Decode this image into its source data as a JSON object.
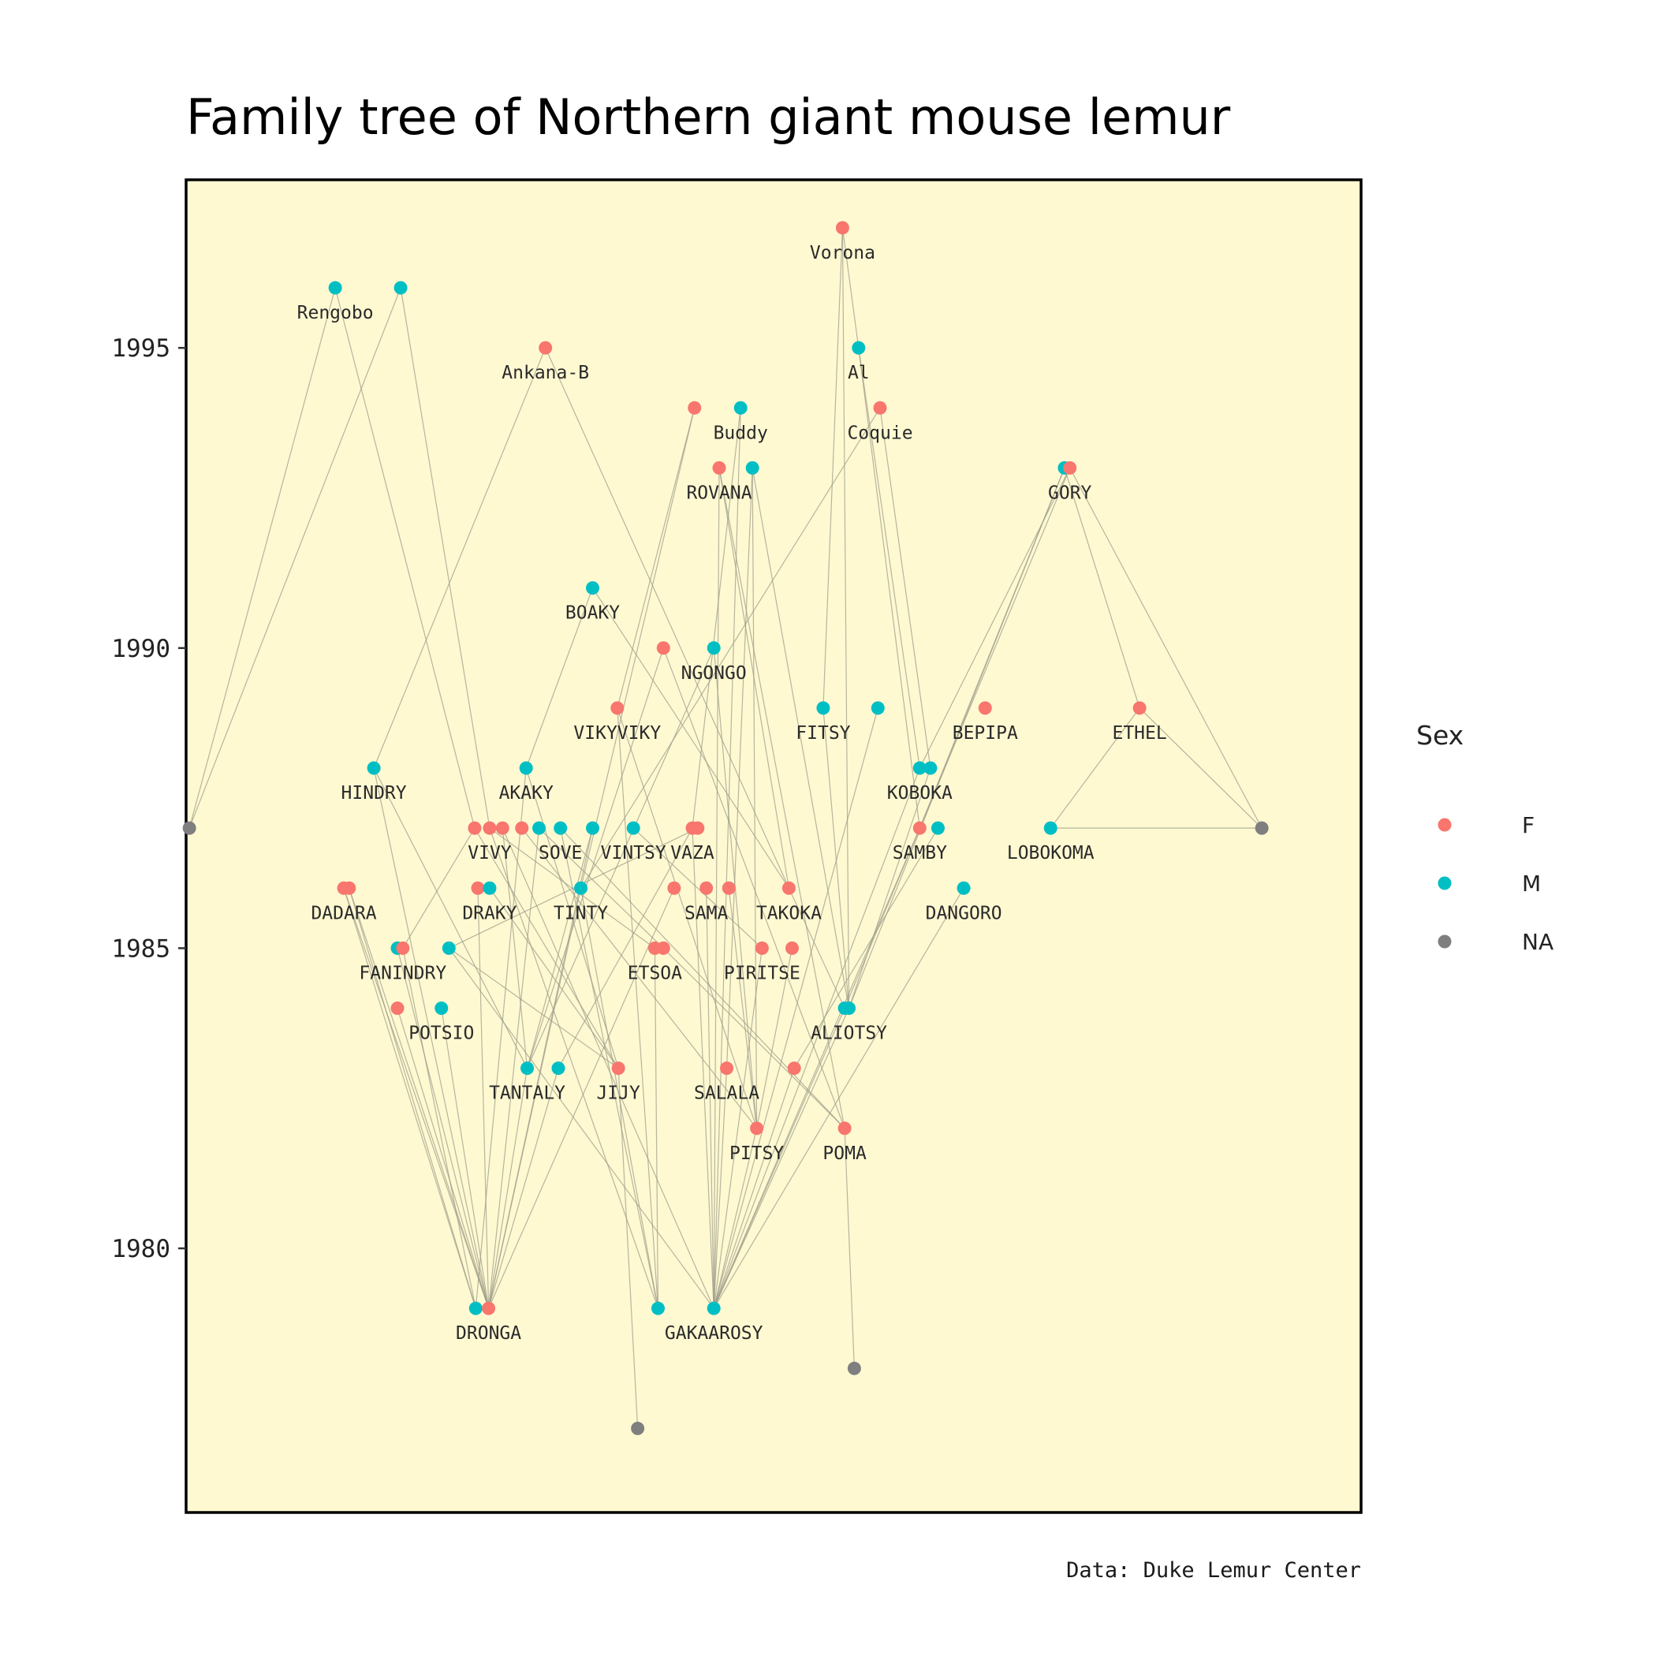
{
  "chart_data": {
    "type": "scatter",
    "title": "Family tree of Northern giant mouse lemur",
    "caption": "Data: Duke Lemur Center",
    "xlabel": "",
    "ylabel": "",
    "ylim": [
      1975.6,
      1997.8
    ],
    "xlim": [
      0,
      1
    ],
    "yticks": [
      1980,
      1985,
      1990,
      1995
    ],
    "grid": false,
    "background_color": "#FFF9D2",
    "edge_color": "#9E9E8A",
    "legend": {
      "title": "Sex",
      "placement": "right",
      "entries": [
        {
          "label": "F",
          "color": "#F8766D"
        },
        {
          "label": "M",
          "color": "#00BFC4"
        },
        {
          "label": "NA",
          "color": "#7F7F7F"
        }
      ]
    },
    "nodes": [
      {
        "id": "vorona",
        "label": "Vorona",
        "sex": "F",
        "x": 0.565,
        "y": 1997.0
      },
      {
        "id": "rengobo",
        "label": "Rengobo",
        "sex": "M",
        "x": 0.092,
        "y": 1996.0
      },
      {
        "id": "m_r2",
        "label": "",
        "sex": "M",
        "x": 0.153,
        "y": 1996.0
      },
      {
        "id": "ankana",
        "label": "Ankana-B",
        "sex": "F",
        "x": 0.288,
        "y": 1995.0
      },
      {
        "id": "al",
        "label": "Al",
        "sex": "M",
        "x": 0.58,
        "y": 1995.0
      },
      {
        "id": "f_b",
        "label": "",
        "sex": "F",
        "x": 0.427,
        "y": 1994.0
      },
      {
        "id": "buddy",
        "label": "Buddy",
        "sex": "M",
        "x": 0.47,
        "y": 1994.0
      },
      {
        "id": "coquie",
        "label": "Coquie",
        "sex": "F",
        "x": 0.6,
        "y": 1994.0
      },
      {
        "id": "rovana",
        "label": "ROVANA",
        "sex": "F",
        "x": 0.45,
        "y": 1993.0
      },
      {
        "id": "m_rov",
        "label": "",
        "sex": "M",
        "x": 0.481,
        "y": 1993.0
      },
      {
        "id": "gory_m",
        "label": "",
        "sex": "M",
        "x": 0.772,
        "y": 1993.0
      },
      {
        "id": "gory",
        "label": "GORY",
        "sex": "F",
        "x": 0.777,
        "y": 1993.0
      },
      {
        "id": "boaky",
        "label": "BOAKY",
        "sex": "M",
        "x": 0.332,
        "y": 1991.0
      },
      {
        "id": "f_n",
        "label": "",
        "sex": "F",
        "x": 0.398,
        "y": 1990.0
      },
      {
        "id": "ngongo",
        "label": "NGONGO",
        "sex": "M",
        "x": 0.445,
        "y": 1990.0
      },
      {
        "id": "vikyviky",
        "label": "VIKYVIKY",
        "sex": "F",
        "x": 0.355,
        "y": 1989.0
      },
      {
        "id": "fitsy",
        "label": "FITSY",
        "sex": "M",
        "x": 0.547,
        "y": 1989.0
      },
      {
        "id": "m_f2",
        "label": "",
        "sex": "M",
        "x": 0.598,
        "y": 1989.0
      },
      {
        "id": "bepipa",
        "label": "BEPIPA",
        "sex": "F",
        "x": 0.698,
        "y": 1989.0
      },
      {
        "id": "ethel",
        "label": "ETHEL",
        "sex": "F",
        "x": 0.842,
        "y": 1989.0
      },
      {
        "id": "hindry",
        "label": "HINDRY",
        "sex": "M",
        "x": 0.128,
        "y": 1988.0
      },
      {
        "id": "akaky",
        "label": "AKAKY",
        "sex": "M",
        "x": 0.27,
        "y": 1988.0
      },
      {
        "id": "koboka",
        "label": "KOBOKA",
        "sex": "M",
        "x": 0.637,
        "y": 1988.0
      },
      {
        "id": "koboka2",
        "label": "",
        "sex": "M",
        "x": 0.647,
        "y": 1988.0
      },
      {
        "id": "na1",
        "label": "",
        "sex": "NA",
        "x": -0.044,
        "y": 1987.0
      },
      {
        "id": "vivy1",
        "label": "",
        "sex": "F",
        "x": 0.222,
        "y": 1987.0
      },
      {
        "id": "vivy",
        "label": "VIVY",
        "sex": "F",
        "x": 0.236,
        "y": 1987.0
      },
      {
        "id": "vivy3",
        "label": "",
        "sex": "F",
        "x": 0.248,
        "y": 1987.0
      },
      {
        "id": "f_v4",
        "label": "",
        "sex": "F",
        "x": 0.266,
        "y": 1987.0
      },
      {
        "id": "m_s1",
        "label": "",
        "sex": "M",
        "x": 0.282,
        "y": 1987.0
      },
      {
        "id": "sove",
        "label": "SOVE",
        "sex": "M",
        "x": 0.302,
        "y": 1987.0
      },
      {
        "id": "m_s3",
        "label": "",
        "sex": "M",
        "x": 0.332,
        "y": 1987.0
      },
      {
        "id": "vintsy",
        "label": "VINTSY",
        "sex": "M",
        "x": 0.37,
        "y": 1987.0
      },
      {
        "id": "vaza",
        "label": "VAZA",
        "sex": "F",
        "x": 0.425,
        "y": 1987.0
      },
      {
        "id": "vaza2",
        "label": "",
        "sex": "F",
        "x": 0.43,
        "y": 1987.0
      },
      {
        "id": "samby",
        "label": "SAMBY",
        "sex": "F",
        "x": 0.637,
        "y": 1987.0
      },
      {
        "id": "samby_m",
        "label": "",
        "sex": "M",
        "x": 0.654,
        "y": 1987.0
      },
      {
        "id": "lobokoma",
        "label": "LOBOKOMA",
        "sex": "M",
        "x": 0.759,
        "y": 1987.0
      },
      {
        "id": "na2",
        "label": "",
        "sex": "NA",
        "x": 0.956,
        "y": 1987.0
      },
      {
        "id": "dadara",
        "label": "DADARA",
        "sex": "F",
        "x": 0.1,
        "y": 1986.0
      },
      {
        "id": "dadara2",
        "label": "",
        "sex": "F",
        "x": 0.105,
        "y": 1986.0
      },
      {
        "id": "draky_f",
        "label": "",
        "sex": "F",
        "x": 0.225,
        "y": 1986.0
      },
      {
        "id": "draky",
        "label": "DRAKY",
        "sex": "M",
        "x": 0.236,
        "y": 1986.0
      },
      {
        "id": "tinty",
        "label": "TINTY",
        "sex": "M",
        "x": 0.321,
        "y": 1986.0
      },
      {
        "id": "f_s1",
        "label": "",
        "sex": "F",
        "x": 0.408,
        "y": 1986.0
      },
      {
        "id": "sama",
        "label": "SAMA",
        "sex": "F",
        "x": 0.438,
        "y": 1986.0
      },
      {
        "id": "f_s3",
        "label": "",
        "sex": "F",
        "x": 0.459,
        "y": 1986.0
      },
      {
        "id": "takoka",
        "label": "TAKOKA",
        "sex": "F",
        "x": 0.515,
        "y": 1986.0
      },
      {
        "id": "dangoro",
        "label": "DANGORO",
        "sex": "M",
        "x": 0.678,
        "y": 1986.0
      },
      {
        "id": "fanindry_m",
        "label": "",
        "sex": "M",
        "x": 0.15,
        "y": 1985.0
      },
      {
        "id": "fanindry",
        "label": "FANINDRY",
        "sex": "F",
        "x": 0.155,
        "y": 1985.0
      },
      {
        "id": "m_f3",
        "label": "",
        "sex": "M",
        "x": 0.198,
        "y": 1985.0
      },
      {
        "id": "etsoa",
        "label": "ETSOA",
        "sex": "F",
        "x": 0.39,
        "y": 1985.0
      },
      {
        "id": "etsoa2",
        "label": "",
        "sex": "F",
        "x": 0.398,
        "y": 1985.0
      },
      {
        "id": "piritse",
        "label": "PIRITSE",
        "sex": "F",
        "x": 0.49,
        "y": 1985.0
      },
      {
        "id": "f_p2",
        "label": "",
        "sex": "F",
        "x": 0.518,
        "y": 1985.0
      },
      {
        "id": "f_po",
        "label": "",
        "sex": "F",
        "x": 0.15,
        "y": 1984.0
      },
      {
        "id": "potsio",
        "label": "POTSIO",
        "sex": "M",
        "x": 0.191,
        "y": 1984.0
      },
      {
        "id": "aliotsy_m",
        "label": "",
        "sex": "M",
        "x": 0.567,
        "y": 1984.0
      },
      {
        "id": "aliotsy",
        "label": "ALIOTSY",
        "sex": "M",
        "x": 0.571,
        "y": 1984.0
      },
      {
        "id": "tantaly",
        "label": "TANTALY",
        "sex": "M",
        "x": 0.271,
        "y": 1983.0
      },
      {
        "id": "m_t2",
        "label": "",
        "sex": "M",
        "x": 0.3,
        "y": 1983.0
      },
      {
        "id": "jijy",
        "label": "JIJY",
        "sex": "F",
        "x": 0.356,
        "y": 1983.0
      },
      {
        "id": "salala",
        "label": "SALALA",
        "sex": "F",
        "x": 0.457,
        "y": 1983.0
      },
      {
        "id": "f_s5",
        "label": "",
        "sex": "F",
        "x": 0.52,
        "y": 1983.0
      },
      {
        "id": "pitsy",
        "label": "PITSY",
        "sex": "F",
        "x": 0.485,
        "y": 1982.0
      },
      {
        "id": "poma",
        "label": "POMA",
        "sex": "F",
        "x": 0.567,
        "y": 1982.0
      },
      {
        "id": "dronga_m",
        "label": "",
        "sex": "M",
        "x": 0.223,
        "y": 1979.0
      },
      {
        "id": "dronga",
        "label": "DRONGA",
        "sex": "F",
        "x": 0.235,
        "y": 1979.0
      },
      {
        "id": "gakaa",
        "label": "",
        "sex": "M",
        "x": 0.393,
        "y": 1979.0
      },
      {
        "id": "gakaarosy",
        "label": "GAKAAROSY",
        "sex": "M",
        "x": 0.445,
        "y": 1979.0
      },
      {
        "id": "na3",
        "label": "",
        "sex": "NA",
        "x": 0.576,
        "y": 1978.0
      },
      {
        "id": "na4",
        "label": "",
        "sex": "NA",
        "x": 0.374,
        "y": 1977.0
      }
    ],
    "edges": [
      [
        "vorona",
        "fitsy"
      ],
      [
        "vorona",
        "aliotsy"
      ],
      [
        "vorona",
        "al"
      ],
      [
        "rengobo",
        "na1"
      ],
      [
        "rengobo",
        "vivy1"
      ],
      [
        "m_r2",
        "na1"
      ],
      [
        "m_r2",
        "vivy"
      ],
      [
        "ankana",
        "hindry"
      ],
      [
        "ankana",
        "takoka"
      ],
      [
        "al",
        "koboka"
      ],
      [
        "al",
        "samby"
      ],
      [
        "f_b",
        "tinty"
      ],
      [
        "f_b",
        "vikyviky"
      ],
      [
        "buddy",
        "vaza"
      ],
      [
        "buddy",
        "gakaarosy"
      ],
      [
        "coquie",
        "koboka2"
      ],
      [
        "coquie",
        "tinty"
      ],
      [
        "rovana",
        "gakaarosy"
      ],
      [
        "rovana",
        "poma"
      ],
      [
        "rovana",
        "takoka"
      ],
      [
        "m_rov",
        "pitsy"
      ],
      [
        "m_rov",
        "aliotsy"
      ],
      [
        "m_rov",
        "salala"
      ],
      [
        "gory_m",
        "aliotsy"
      ],
      [
        "gory_m",
        "samby"
      ],
      [
        "gory_m",
        "ethel"
      ],
      [
        "gory",
        "koboka"
      ],
      [
        "gory",
        "na2"
      ],
      [
        "gory",
        "aliotsy_m"
      ],
      [
        "boaky",
        "akaky"
      ],
      [
        "boaky",
        "takoka"
      ],
      [
        "f_n",
        "tantaly"
      ],
      [
        "f_n",
        "poma"
      ],
      [
        "ngongo",
        "tantaly"
      ],
      [
        "ngongo",
        "pitsy"
      ],
      [
        "vikyviky",
        "gakaa"
      ],
      [
        "vikyviky",
        "pitsy"
      ],
      [
        "fitsy",
        "aliotsy"
      ],
      [
        "m_f2",
        "gakaarosy"
      ],
      [
        "ethel",
        "lobokoma"
      ],
      [
        "ethel",
        "na2"
      ],
      [
        "hindry",
        "dronga"
      ],
      [
        "hindry",
        "tantaly"
      ],
      [
        "akaky",
        "dronga_m"
      ],
      [
        "akaky",
        "jijy"
      ],
      [
        "koboka",
        "gakaarosy"
      ],
      [
        "koboka2",
        "aliotsy"
      ],
      [
        "vivy1",
        "fanindry"
      ],
      [
        "vivy1",
        "jijy"
      ],
      [
        "vivy",
        "gakaa"
      ],
      [
        "vivy",
        "etsoa"
      ],
      [
        "vivy3",
        "tantaly"
      ],
      [
        "vivy3",
        "gakaarosy"
      ],
      [
        "f_v4",
        "pitsy"
      ],
      [
        "m_s1",
        "etsoa2"
      ],
      [
        "m_s1",
        "dronga"
      ],
      [
        "sove",
        "gakaa"
      ],
      [
        "sove",
        "poma"
      ],
      [
        "m_s3",
        "dronga"
      ],
      [
        "m_s3",
        "tantaly"
      ],
      [
        "vintsy",
        "piritse"
      ],
      [
        "vaza",
        "m_t2"
      ],
      [
        "vaza",
        "gakaarosy"
      ],
      [
        "vaza2",
        "m_f3"
      ],
      [
        "samby",
        "gakaarosy"
      ],
      [
        "samby_m",
        "f_s5"
      ],
      [
        "lobokoma",
        "na2"
      ],
      [
        "dadara",
        "dronga"
      ],
      [
        "dadara",
        "dronga_m"
      ],
      [
        "dadara2",
        "dronga"
      ],
      [
        "dadara2",
        "dronga_m"
      ],
      [
        "draky_f",
        "dronga"
      ],
      [
        "draky",
        "jijy"
      ],
      [
        "tinty",
        "gakaa"
      ],
      [
        "tinty",
        "dronga"
      ],
      [
        "f_s1",
        "dronga"
      ],
      [
        "sama",
        "gakaarosy"
      ],
      [
        "f_s3",
        "pitsy"
      ],
      [
        "takoka",
        "aliotsy_m"
      ],
      [
        "dangoro",
        "gakaarosy"
      ],
      [
        "fanindry_m",
        "dronga"
      ],
      [
        "fanindry",
        "dronga_m"
      ],
      [
        "m_f3",
        "gakaarosy"
      ],
      [
        "m_f3",
        "jijy"
      ],
      [
        "etsoa",
        "gakaa"
      ],
      [
        "etsoa2",
        "poma"
      ],
      [
        "piritse",
        "gakaarosy"
      ],
      [
        "f_p2",
        "pitsy"
      ],
      [
        "f_po",
        "dronga"
      ],
      [
        "potsio",
        "dronga"
      ],
      [
        "aliotsy",
        "gakaarosy"
      ],
      [
        "aliotsy_m",
        "gakaarosy"
      ],
      [
        "tantaly",
        "dronga"
      ],
      [
        "m_t2",
        "dronga"
      ],
      [
        "jijy",
        "na4"
      ],
      [
        "salala",
        "gakaarosy"
      ],
      [
        "f_s5",
        "gakaarosy"
      ],
      [
        "pitsy",
        "gakaarosy"
      ],
      [
        "poma",
        "na3"
      ]
    ]
  }
}
